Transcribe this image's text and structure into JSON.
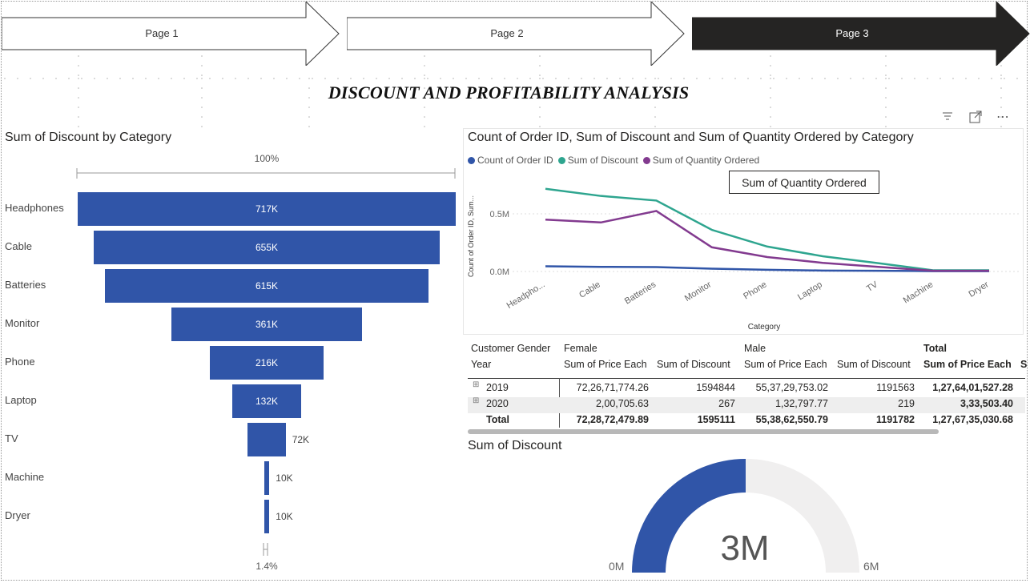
{
  "nav": {
    "pages": [
      {
        "label": "Page 1",
        "active": false
      },
      {
        "label": "Page 2",
        "active": false
      },
      {
        "label": "Page 3",
        "active": true
      }
    ]
  },
  "report_title": "DISCOUNT AND PROFITABILITY ANALYSIS",
  "funnel": {
    "title": "Sum of Discount by Category",
    "top_pct": "100%",
    "bottom_pct": "1.4%",
    "bar_color": "#3055a8"
  },
  "line_chart": {
    "title": "Count of Order ID, Sum of Discount and Sum of Quantity Ordered by Category",
    "ylabel": "Count of Order ID, Sum...",
    "xlabel": "Category",
    "tooltip": "Sum of Quantity Ordered",
    "y_ticks": [
      "0.5M",
      "0.0M"
    ],
    "x_ticks": [
      "Headpho...",
      "Cable",
      "Batteries",
      "Monitor",
      "Phone",
      "Laptop",
      "TV",
      "Machine",
      "Dryer"
    ],
    "icons": [
      "filter-icon",
      "focus-mode-icon",
      "more-options-icon"
    ]
  },
  "matrix": {
    "row_header": "Customer Gender",
    "row_subheader": "Year",
    "groups": [
      "Female",
      "Male",
      "Total"
    ],
    "cols": [
      "Sum of Price Each",
      "Sum of Discount",
      "Sum of Price Each",
      "Sum of Discount",
      "Sum of Price Each",
      "S"
    ],
    "rows": [
      {
        "year": "2019",
        "cells": [
          "72,26,71,774.26",
          "1594844",
          "55,37,29,753.02",
          "1191563",
          "1,27,64,01,527.28"
        ]
      },
      {
        "year": "2020",
        "cells": [
          "2,00,705.63",
          "267",
          "1,32,797.77",
          "219",
          "3,33,503.40"
        ]
      }
    ],
    "total": {
      "label": "Total",
      "cells": [
        "72,28,72,479.89",
        "1595111",
        "55,38,62,550.79",
        "1191782",
        "1,27,67,35,030.68"
      ]
    },
    "expand_glyph": "⊞"
  },
  "gauge": {
    "title": "Sum of Discount",
    "value_label": "3M",
    "min_label": "0M",
    "max_label": "6M",
    "fill_fraction": 0.5,
    "fill_color": "#3055a8",
    "track_color": "#f0efef"
  },
  "chart_data": [
    {
      "type": "bar",
      "title": "Sum of Discount by Category",
      "categories": [
        "Headphones",
        "Cable",
        "Batteries",
        "Monitor",
        "Phone",
        "Laptop",
        "TV",
        "Machine",
        "Dryer"
      ],
      "values": [
        717000,
        655000,
        615000,
        361000,
        216000,
        132000,
        72000,
        10000,
        10000
      ],
      "labels": [
        "717K",
        "655K",
        "615K",
        "361K",
        "216K",
        "132K",
        "72K",
        "10K",
        "10K"
      ]
    },
    {
      "type": "line",
      "title": "Count of Order ID, Sum of Discount and Sum of Quantity Ordered by Category",
      "categories": [
        "Headphones",
        "Cable",
        "Batteries",
        "Monitor",
        "Phone",
        "Laptop",
        "TV",
        "Machine",
        "Dryer"
      ],
      "ylim": [
        0,
        0.85
      ],
      "series": [
        {
          "name": "Count of Order ID",
          "color": "#3055a8",
          "values": [
            0.045,
            0.04,
            0.038,
            0.024,
            0.015,
            0.008,
            0.006,
            0.003,
            0.003
          ]
        },
        {
          "name": "Sum of Discount",
          "color": "#2ea58f",
          "values": [
            0.717,
            0.655,
            0.615,
            0.361,
            0.216,
            0.132,
            0.072,
            0.01,
            0.01
          ]
        },
        {
          "name": "Sum of Quantity Ordered",
          "color": "#823a8f",
          "values": [
            0.45,
            0.425,
            0.525,
            0.21,
            0.125,
            0.075,
            0.04,
            0.006,
            0.006
          ]
        }
      ]
    }
  ]
}
